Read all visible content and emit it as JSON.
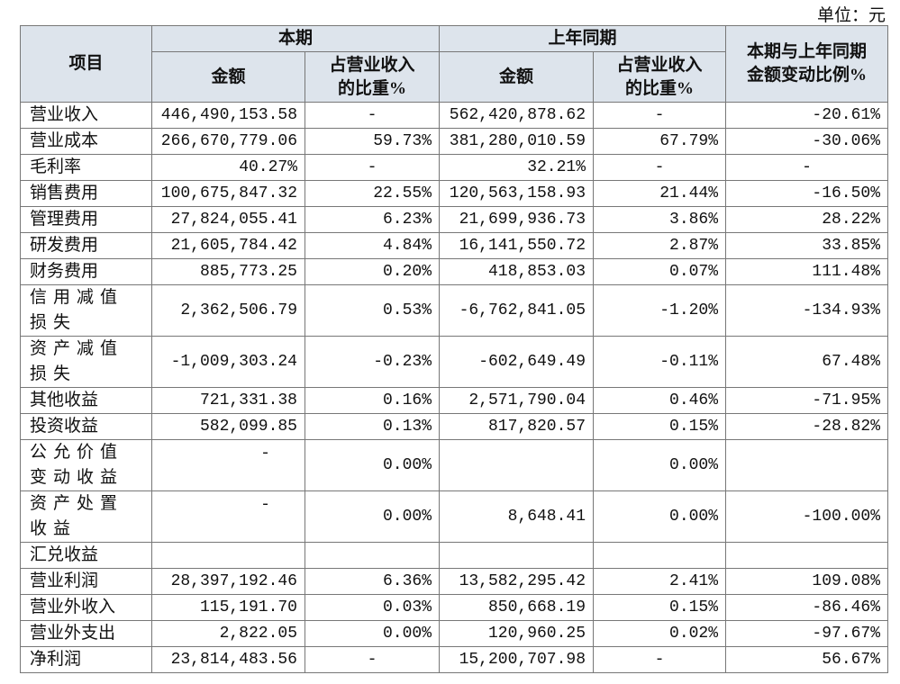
{
  "unit": "单位：元",
  "header": {
    "item": "项目",
    "current": "本期",
    "previous": "上年同期",
    "amount": "金额",
    "share": [
      "占营业收入",
      "的比重%"
    ],
    "change": [
      "本期与上年同期",
      "金额变动比例%"
    ]
  },
  "table": {
    "rows": [
      [
        "营业收入",
        "446,490,153.58",
        "-",
        "562,420,878.62",
        "-",
        "-20.61%"
      ],
      [
        "营业成本",
        "266,670,779.06",
        "59.73%",
        "381,280,010.59",
        "67.79%",
        "-30.06%"
      ],
      [
        "毛利率",
        "40.27%",
        "-",
        "32.21%",
        "-",
        "-"
      ],
      [
        "销售费用",
        "100,675,847.32",
        "22.55%",
        "120,563,158.93",
        "21.44%",
        "-16.50%"
      ],
      [
        "管理费用",
        "27,824,055.41",
        "6.23%",
        "21,699,936.73",
        "3.86%",
        "28.22%"
      ],
      [
        "研发费用",
        "21,605,784.42",
        "4.84%",
        "16,141,550.72",
        "2.87%",
        "33.85%"
      ],
      [
        "财务费用",
        "885,773.25",
        "0.20%",
        "418,853.03",
        "0.07%",
        "111.48%"
      ],
      [
        "信用减值损失",
        "2,362,506.79",
        "0.53%",
        "-6,762,841.05",
        "-1.20%",
        "-134.93%"
      ],
      [
        "资产减值损失",
        "-1,009,303.24",
        "-0.23%",
        "-602,649.49",
        "-0.11%",
        "67.48%"
      ],
      [
        "其他收益",
        "721,331.38",
        "0.16%",
        "2,571,790.04",
        "0.46%",
        "-71.95%"
      ],
      [
        "投资收益",
        "582,099.85",
        "0.13%",
        "817,820.57",
        "0.15%",
        "-28.82%"
      ],
      [
        "公允价值变动收益",
        "-",
        "0.00%",
        null,
        "0.00%",
        null
      ],
      [
        "资产处置收益",
        "-",
        "0.00%",
        "8,648.41",
        "0.00%",
        "-100.00%"
      ],
      [
        "汇兑收益",
        null,
        null,
        null,
        null,
        null
      ],
      [
        "营业利润",
        "28,397,192.46",
        "6.36%",
        "13,582,295.42",
        "2.41%",
        "109.08%"
      ],
      [
        "营业外收入",
        "115,191.70",
        "0.03%",
        "850,668.19",
        "0.15%",
        "-86.46%"
      ],
      [
        "营业外支出",
        "2,822.05",
        "0.00%",
        "120,960.25",
        "0.02%",
        "-97.67%"
      ],
      [
        "净利润",
        "23,814,483.56",
        "-",
        "15,200,707.98",
        "-",
        "56.67%"
      ]
    ]
  }
}
